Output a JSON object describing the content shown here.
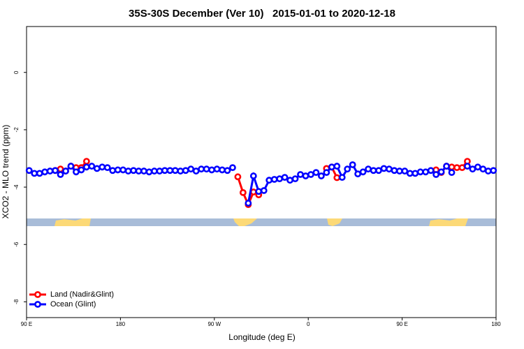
{
  "chart_data": {
    "type": "line",
    "title": "35S-30S December (Ver 10)   2015-01-01 to 2020-12-18",
    "x_label": "Longitude (deg E)",
    "y_label": "XCO2 - MLO trend (ppm)",
    "xlim": [
      90,
      540
    ],
    "xticks": [
      {
        "value": 90,
        "label": "90 E"
      },
      {
        "value": 180,
        "label": "180"
      },
      {
        "value": 270,
        "label": "90 W"
      },
      {
        "value": 360,
        "label": "0"
      },
      {
        "value": 450,
        "label": "90 E"
      },
      {
        "value": 540,
        "label": "180"
      }
    ],
    "ylim": [
      -8.55,
      1.6
    ],
    "yticks": [
      0,
      -2,
      -4,
      -6,
      -8
    ],
    "legend": "bottomleft",
    "x": [
      92.5,
      97.5,
      102.5,
      107.5,
      112.5,
      117.5,
      122.5,
      127.5,
      132.5,
      137.5,
      142.5,
      147.5,
      152.5,
      157.5,
      162.5,
      167.5,
      172.5,
      177.5,
      182.5,
      187.5,
      192.5,
      197.5,
      202.5,
      207.5,
      212.5,
      217.5,
      222.5,
      227.5,
      232.5,
      237.5,
      242.5,
      247.5,
      252.5,
      257.5,
      262.5,
      267.5,
      272.5,
      277.5,
      282.5,
      287.5,
      292.5,
      297.5,
      302.5,
      307.5,
      312.5,
      317.5,
      322.5,
      327.5,
      332.5,
      337.5,
      342.5,
      347.5,
      352.5,
      357.5,
      362.5,
      367.5,
      372.5,
      377.5,
      382.5,
      387.5,
      392.5,
      397.5,
      402.5,
      407.5,
      412.5,
      417.5,
      422.5,
      427.5,
      432.5,
      437.5,
      442.5,
      447.5,
      452.5,
      457.5,
      462.5,
      467.5,
      472.5,
      477.5,
      482.5,
      487.5,
      492.5,
      497.5,
      502.5,
      507.5,
      512.5,
      517.5,
      522.5,
      527.5,
      532.5,
      537.5
    ],
    "series": [
      {
        "name": "Land (Nadir&Glint)",
        "color": "#ff0000",
        "values": [
          null,
          null,
          null,
          null,
          null,
          -3.42,
          -3.37,
          -3.44,
          -3.27,
          -3.32,
          -3.32,
          -3.1,
          null,
          null,
          null,
          null,
          null,
          null,
          null,
          null,
          null,
          null,
          null,
          null,
          null,
          null,
          null,
          null,
          null,
          null,
          null,
          null,
          null,
          null,
          null,
          null,
          null,
          null,
          null,
          null,
          -3.64,
          -4.19,
          -4.61,
          -4.17,
          -4.27,
          null,
          null,
          null,
          null,
          null,
          null,
          null,
          null,
          null,
          null,
          null,
          null,
          -3.35,
          -3.3,
          -3.67,
          null,
          null,
          null,
          null,
          null,
          null,
          null,
          null,
          null,
          null,
          null,
          null,
          null,
          null,
          null,
          null,
          null,
          null,
          -3.4,
          -3.49,
          -3.27,
          -3.3,
          -3.32,
          -3.32,
          -3.1,
          null,
          null,
          null,
          null,
          null
        ]
      },
      {
        "name": "Ocean (Glint)",
        "color": "#0000ff",
        "values": [
          -3.42,
          -3.52,
          -3.52,
          -3.47,
          -3.44,
          -3.42,
          -3.56,
          -3.44,
          -3.27,
          -3.47,
          -3.4,
          -3.3,
          -3.27,
          -3.35,
          -3.3,
          -3.32,
          -3.42,
          -3.4,
          -3.4,
          -3.44,
          -3.42,
          -3.44,
          -3.44,
          -3.47,
          -3.44,
          -3.44,
          -3.42,
          -3.42,
          -3.42,
          -3.44,
          -3.42,
          -3.37,
          -3.44,
          -3.37,
          -3.37,
          -3.4,
          -3.37,
          -3.4,
          -3.42,
          -3.32,
          null,
          null,
          -4.56,
          -3.61,
          -4.15,
          -4.12,
          -3.76,
          -3.73,
          -3.71,
          -3.66,
          -3.76,
          -3.71,
          -3.56,
          -3.61,
          -3.56,
          -3.49,
          -3.61,
          -3.49,
          -3.3,
          -3.27,
          -3.66,
          -3.37,
          -3.22,
          -3.54,
          -3.47,
          -3.37,
          -3.42,
          -3.42,
          -3.35,
          -3.37,
          -3.42,
          -3.44,
          -3.44,
          -3.52,
          -3.52,
          -3.47,
          -3.47,
          -3.42,
          -3.56,
          -3.47,
          -3.27,
          -3.49,
          null,
          null,
          -3.27,
          -3.37,
          -3.3,
          -3.37,
          -3.44,
          -3.42
        ]
      }
    ]
  }
}
